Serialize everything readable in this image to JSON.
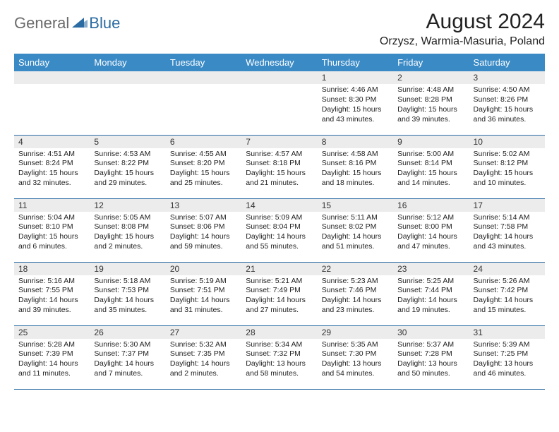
{
  "brand": {
    "general": "General",
    "blue": "Blue"
  },
  "title": "August 2024",
  "location": "Orzysz, Warmia-Masuria, Poland",
  "colors": {
    "header_bg": "#3a8ac6",
    "header_text": "#ffffff",
    "daynum_bg": "#ececec",
    "week_divider": "#2b6ca3",
    "logo_gray": "#6b6b6b",
    "logo_blue": "#2b6ca3",
    "page_bg": "#ffffff",
    "body_text": "#222222"
  },
  "weekdays": [
    "Sunday",
    "Monday",
    "Tuesday",
    "Wednesday",
    "Thursday",
    "Friday",
    "Saturday"
  ],
  "weeks": [
    [
      {
        "n": "",
        "sr": "",
        "ss": "",
        "dl": ""
      },
      {
        "n": "",
        "sr": "",
        "ss": "",
        "dl": ""
      },
      {
        "n": "",
        "sr": "",
        "ss": "",
        "dl": ""
      },
      {
        "n": "",
        "sr": "",
        "ss": "",
        "dl": ""
      },
      {
        "n": "1",
        "sr": "Sunrise: 4:46 AM",
        "ss": "Sunset: 8:30 PM",
        "dl": "Daylight: 15 hours and 43 minutes."
      },
      {
        "n": "2",
        "sr": "Sunrise: 4:48 AM",
        "ss": "Sunset: 8:28 PM",
        "dl": "Daylight: 15 hours and 39 minutes."
      },
      {
        "n": "3",
        "sr": "Sunrise: 4:50 AM",
        "ss": "Sunset: 8:26 PM",
        "dl": "Daylight: 15 hours and 36 minutes."
      }
    ],
    [
      {
        "n": "4",
        "sr": "Sunrise: 4:51 AM",
        "ss": "Sunset: 8:24 PM",
        "dl": "Daylight: 15 hours and 32 minutes."
      },
      {
        "n": "5",
        "sr": "Sunrise: 4:53 AM",
        "ss": "Sunset: 8:22 PM",
        "dl": "Daylight: 15 hours and 29 minutes."
      },
      {
        "n": "6",
        "sr": "Sunrise: 4:55 AM",
        "ss": "Sunset: 8:20 PM",
        "dl": "Daylight: 15 hours and 25 minutes."
      },
      {
        "n": "7",
        "sr": "Sunrise: 4:57 AM",
        "ss": "Sunset: 8:18 PM",
        "dl": "Daylight: 15 hours and 21 minutes."
      },
      {
        "n": "8",
        "sr": "Sunrise: 4:58 AM",
        "ss": "Sunset: 8:16 PM",
        "dl": "Daylight: 15 hours and 18 minutes."
      },
      {
        "n": "9",
        "sr": "Sunrise: 5:00 AM",
        "ss": "Sunset: 8:14 PM",
        "dl": "Daylight: 15 hours and 14 minutes."
      },
      {
        "n": "10",
        "sr": "Sunrise: 5:02 AM",
        "ss": "Sunset: 8:12 PM",
        "dl": "Daylight: 15 hours and 10 minutes."
      }
    ],
    [
      {
        "n": "11",
        "sr": "Sunrise: 5:04 AM",
        "ss": "Sunset: 8:10 PM",
        "dl": "Daylight: 15 hours and 6 minutes."
      },
      {
        "n": "12",
        "sr": "Sunrise: 5:05 AM",
        "ss": "Sunset: 8:08 PM",
        "dl": "Daylight: 15 hours and 2 minutes."
      },
      {
        "n": "13",
        "sr": "Sunrise: 5:07 AM",
        "ss": "Sunset: 8:06 PM",
        "dl": "Daylight: 14 hours and 59 minutes."
      },
      {
        "n": "14",
        "sr": "Sunrise: 5:09 AM",
        "ss": "Sunset: 8:04 PM",
        "dl": "Daylight: 14 hours and 55 minutes."
      },
      {
        "n": "15",
        "sr": "Sunrise: 5:11 AM",
        "ss": "Sunset: 8:02 PM",
        "dl": "Daylight: 14 hours and 51 minutes."
      },
      {
        "n": "16",
        "sr": "Sunrise: 5:12 AM",
        "ss": "Sunset: 8:00 PM",
        "dl": "Daylight: 14 hours and 47 minutes."
      },
      {
        "n": "17",
        "sr": "Sunrise: 5:14 AM",
        "ss": "Sunset: 7:58 PM",
        "dl": "Daylight: 14 hours and 43 minutes."
      }
    ],
    [
      {
        "n": "18",
        "sr": "Sunrise: 5:16 AM",
        "ss": "Sunset: 7:55 PM",
        "dl": "Daylight: 14 hours and 39 minutes."
      },
      {
        "n": "19",
        "sr": "Sunrise: 5:18 AM",
        "ss": "Sunset: 7:53 PM",
        "dl": "Daylight: 14 hours and 35 minutes."
      },
      {
        "n": "20",
        "sr": "Sunrise: 5:19 AM",
        "ss": "Sunset: 7:51 PM",
        "dl": "Daylight: 14 hours and 31 minutes."
      },
      {
        "n": "21",
        "sr": "Sunrise: 5:21 AM",
        "ss": "Sunset: 7:49 PM",
        "dl": "Daylight: 14 hours and 27 minutes."
      },
      {
        "n": "22",
        "sr": "Sunrise: 5:23 AM",
        "ss": "Sunset: 7:46 PM",
        "dl": "Daylight: 14 hours and 23 minutes."
      },
      {
        "n": "23",
        "sr": "Sunrise: 5:25 AM",
        "ss": "Sunset: 7:44 PM",
        "dl": "Daylight: 14 hours and 19 minutes."
      },
      {
        "n": "24",
        "sr": "Sunrise: 5:26 AM",
        "ss": "Sunset: 7:42 PM",
        "dl": "Daylight: 14 hours and 15 minutes."
      }
    ],
    [
      {
        "n": "25",
        "sr": "Sunrise: 5:28 AM",
        "ss": "Sunset: 7:39 PM",
        "dl": "Daylight: 14 hours and 11 minutes."
      },
      {
        "n": "26",
        "sr": "Sunrise: 5:30 AM",
        "ss": "Sunset: 7:37 PM",
        "dl": "Daylight: 14 hours and 7 minutes."
      },
      {
        "n": "27",
        "sr": "Sunrise: 5:32 AM",
        "ss": "Sunset: 7:35 PM",
        "dl": "Daylight: 14 hours and 2 minutes."
      },
      {
        "n": "28",
        "sr": "Sunrise: 5:34 AM",
        "ss": "Sunset: 7:32 PM",
        "dl": "Daylight: 13 hours and 58 minutes."
      },
      {
        "n": "29",
        "sr": "Sunrise: 5:35 AM",
        "ss": "Sunset: 7:30 PM",
        "dl": "Daylight: 13 hours and 54 minutes."
      },
      {
        "n": "30",
        "sr": "Sunrise: 5:37 AM",
        "ss": "Sunset: 7:28 PM",
        "dl": "Daylight: 13 hours and 50 minutes."
      },
      {
        "n": "31",
        "sr": "Sunrise: 5:39 AM",
        "ss": "Sunset: 7:25 PM",
        "dl": "Daylight: 13 hours and 46 minutes."
      }
    ]
  ]
}
